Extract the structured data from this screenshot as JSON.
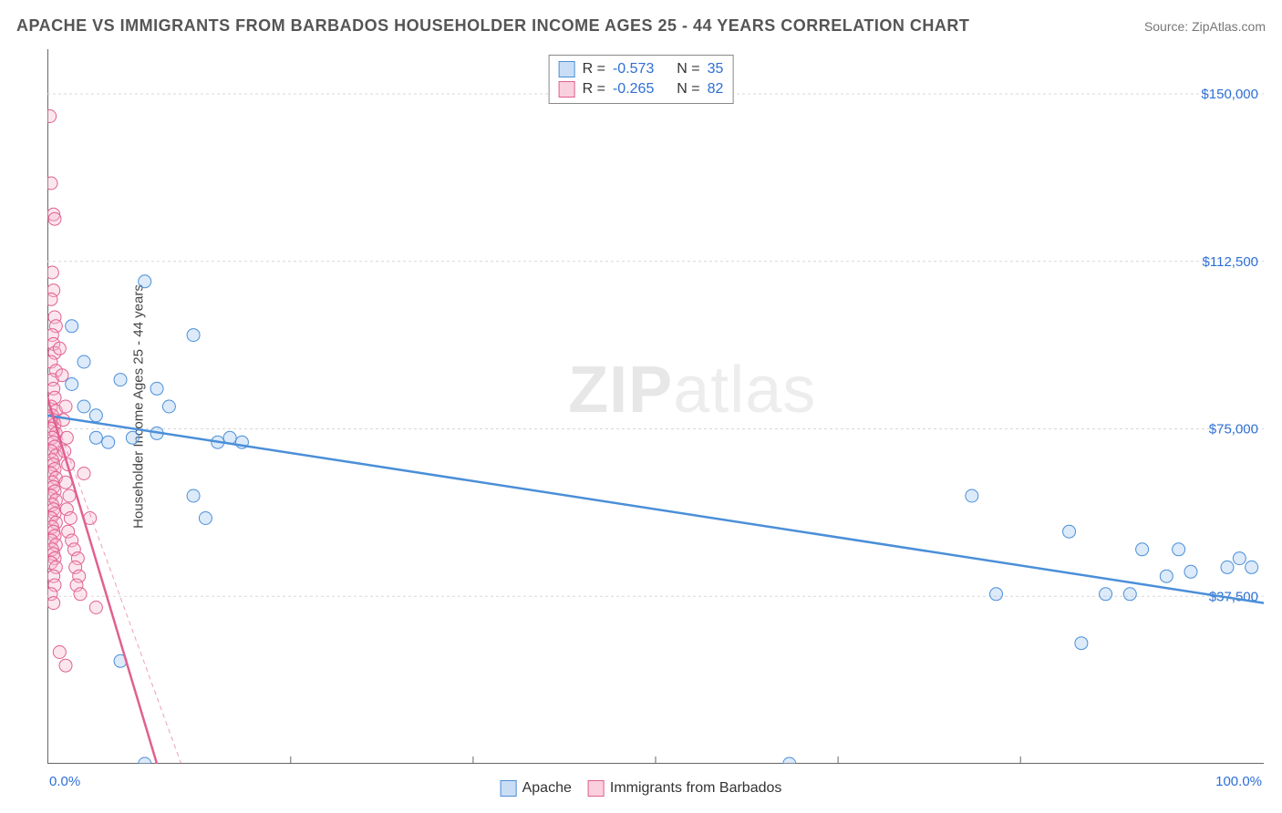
{
  "chart": {
    "title": "APACHE VS IMMIGRANTS FROM BARBADOS HOUSEHOLDER INCOME AGES 25 - 44 YEARS CORRELATION CHART",
    "source": "Source: ZipAtlas.com",
    "watermark_a": "ZIP",
    "watermark_b": "atlas",
    "ylabel": "Householder Income Ages 25 - 44 years",
    "type": "scatter",
    "xlim": [
      0,
      100
    ],
    "ylim": [
      0,
      160000
    ],
    "x_axis_min_label": "0.0%",
    "x_axis_max_label": "100.0%",
    "y_ticks": [
      37500,
      75000,
      112500,
      150000
    ],
    "y_tick_labels": [
      "$37,500",
      "$75,000",
      "$112,500",
      "$150,000"
    ],
    "x_ticks": [
      20,
      35,
      50,
      65,
      80
    ],
    "grid_color": "#d8d8d8",
    "background_color": "#ffffff",
    "marker_radius": 7,
    "marker_opacity": 0.35,
    "line_width": 2.5,
    "series": [
      {
        "name": "Apache",
        "color_fill": "#9cc4f0",
        "color_stroke": "#4a8fd8",
        "R": -0.573,
        "N": 35,
        "trend": {
          "x1": 0,
          "y1": 78000,
          "x2": 100,
          "y2": 36000
        },
        "points": [
          [
            2,
            98000
          ],
          [
            2,
            85000
          ],
          [
            3,
            80000
          ],
          [
            3,
            90000
          ],
          [
            4,
            73000
          ],
          [
            4,
            78000
          ],
          [
            5,
            72000
          ],
          [
            6,
            86000
          ],
          [
            7,
            73000
          ],
          [
            8,
            108000
          ],
          [
            9,
            84000
          ],
          [
            9,
            74000
          ],
          [
            10,
            80000
          ],
          [
            12,
            60000
          ],
          [
            12,
            96000
          ],
          [
            13,
            55000
          ],
          [
            14,
            72000
          ],
          [
            15,
            73000
          ],
          [
            16,
            72000
          ],
          [
            6,
            23000
          ],
          [
            8,
            0
          ],
          [
            61,
            0
          ],
          [
            76,
            60000
          ],
          [
            78,
            38000
          ],
          [
            84,
            52000
          ],
          [
            85,
            27000
          ],
          [
            87,
            38000
          ],
          [
            89,
            38000
          ],
          [
            90,
            48000
          ],
          [
            92,
            42000
          ],
          [
            93,
            48000
          ],
          [
            94,
            43000
          ],
          [
            97,
            44000
          ],
          [
            98,
            46000
          ],
          [
            99,
            44000
          ]
        ]
      },
      {
        "name": "Immigrants from Barbados",
        "color_fill": "#f5b8cf",
        "color_stroke": "#e06090",
        "R": -0.265,
        "N": 82,
        "trend": {
          "x1": 0,
          "y1": 82000,
          "x2": 9,
          "y2": 0
        },
        "trend_dashed_extension": {
          "x1": 0,
          "y1": 82000,
          "x2": 11,
          "y2": 0
        },
        "points": [
          [
            0.2,
            145000
          ],
          [
            0.3,
            130000
          ],
          [
            0.5,
            123000
          ],
          [
            0.6,
            122000
          ],
          [
            0.4,
            110000
          ],
          [
            0.5,
            106000
          ],
          [
            0.3,
            104000
          ],
          [
            0.6,
            100000
          ],
          [
            0.7,
            98000
          ],
          [
            0.4,
            96000
          ],
          [
            0.5,
            94000
          ],
          [
            0.6,
            92000
          ],
          [
            0.3,
            90000
          ],
          [
            0.7,
            88000
          ],
          [
            0.4,
            86000
          ],
          [
            0.5,
            84000
          ],
          [
            0.6,
            82000
          ],
          [
            0.3,
            80000
          ],
          [
            0.7,
            79000
          ],
          [
            0.4,
            78000
          ],
          [
            0.5,
            77000
          ],
          [
            0.6,
            76000
          ],
          [
            0.3,
            75000
          ],
          [
            0.7,
            74000
          ],
          [
            0.4,
            73000
          ],
          [
            0.5,
            72000
          ],
          [
            0.6,
            71000
          ],
          [
            0.3,
            70000
          ],
          [
            0.7,
            69000
          ],
          [
            0.4,
            68000
          ],
          [
            0.5,
            67000
          ],
          [
            0.6,
            66000
          ],
          [
            0.3,
            65000
          ],
          [
            0.7,
            64000
          ],
          [
            0.4,
            63000
          ],
          [
            0.5,
            62000
          ],
          [
            0.6,
            61000
          ],
          [
            0.3,
            60000
          ],
          [
            0.7,
            59000
          ],
          [
            0.4,
            58000
          ],
          [
            0.5,
            57000
          ],
          [
            0.6,
            56000
          ],
          [
            0.3,
            55000
          ],
          [
            0.7,
            54000
          ],
          [
            0.4,
            53000
          ],
          [
            0.5,
            52000
          ],
          [
            0.6,
            51000
          ],
          [
            0.3,
            50000
          ],
          [
            0.7,
            49000
          ],
          [
            0.4,
            48000
          ],
          [
            0.5,
            47000
          ],
          [
            0.6,
            46000
          ],
          [
            0.3,
            45000
          ],
          [
            0.7,
            44000
          ],
          [
            0.5,
            42000
          ],
          [
            0.6,
            40000
          ],
          [
            0.3,
            38000
          ],
          [
            0.5,
            36000
          ],
          [
            1,
            93000
          ],
          [
            1.2,
            87000
          ],
          [
            1.5,
            80000
          ],
          [
            1.3,
            77000
          ],
          [
            1.6,
            73000
          ],
          [
            1.4,
            70000
          ],
          [
            1.7,
            67000
          ],
          [
            1.5,
            63000
          ],
          [
            1.8,
            60000
          ],
          [
            1.6,
            57000
          ],
          [
            1.9,
            55000
          ],
          [
            1.7,
            52000
          ],
          [
            2,
            50000
          ],
          [
            2.2,
            48000
          ],
          [
            2.5,
            46000
          ],
          [
            2.3,
            44000
          ],
          [
            2.6,
            42000
          ],
          [
            2.4,
            40000
          ],
          [
            2.7,
            38000
          ],
          [
            3,
            65000
          ],
          [
            3.5,
            55000
          ],
          [
            4,
            35000
          ],
          [
            1,
            25000
          ],
          [
            1.5,
            22000
          ]
        ]
      }
    ],
    "stats_legend": {
      "r_label": "R =",
      "n_label": "N ="
    },
    "bottom_legend": {
      "series1": "Apache",
      "series2": "Immigrants from Barbados"
    }
  }
}
